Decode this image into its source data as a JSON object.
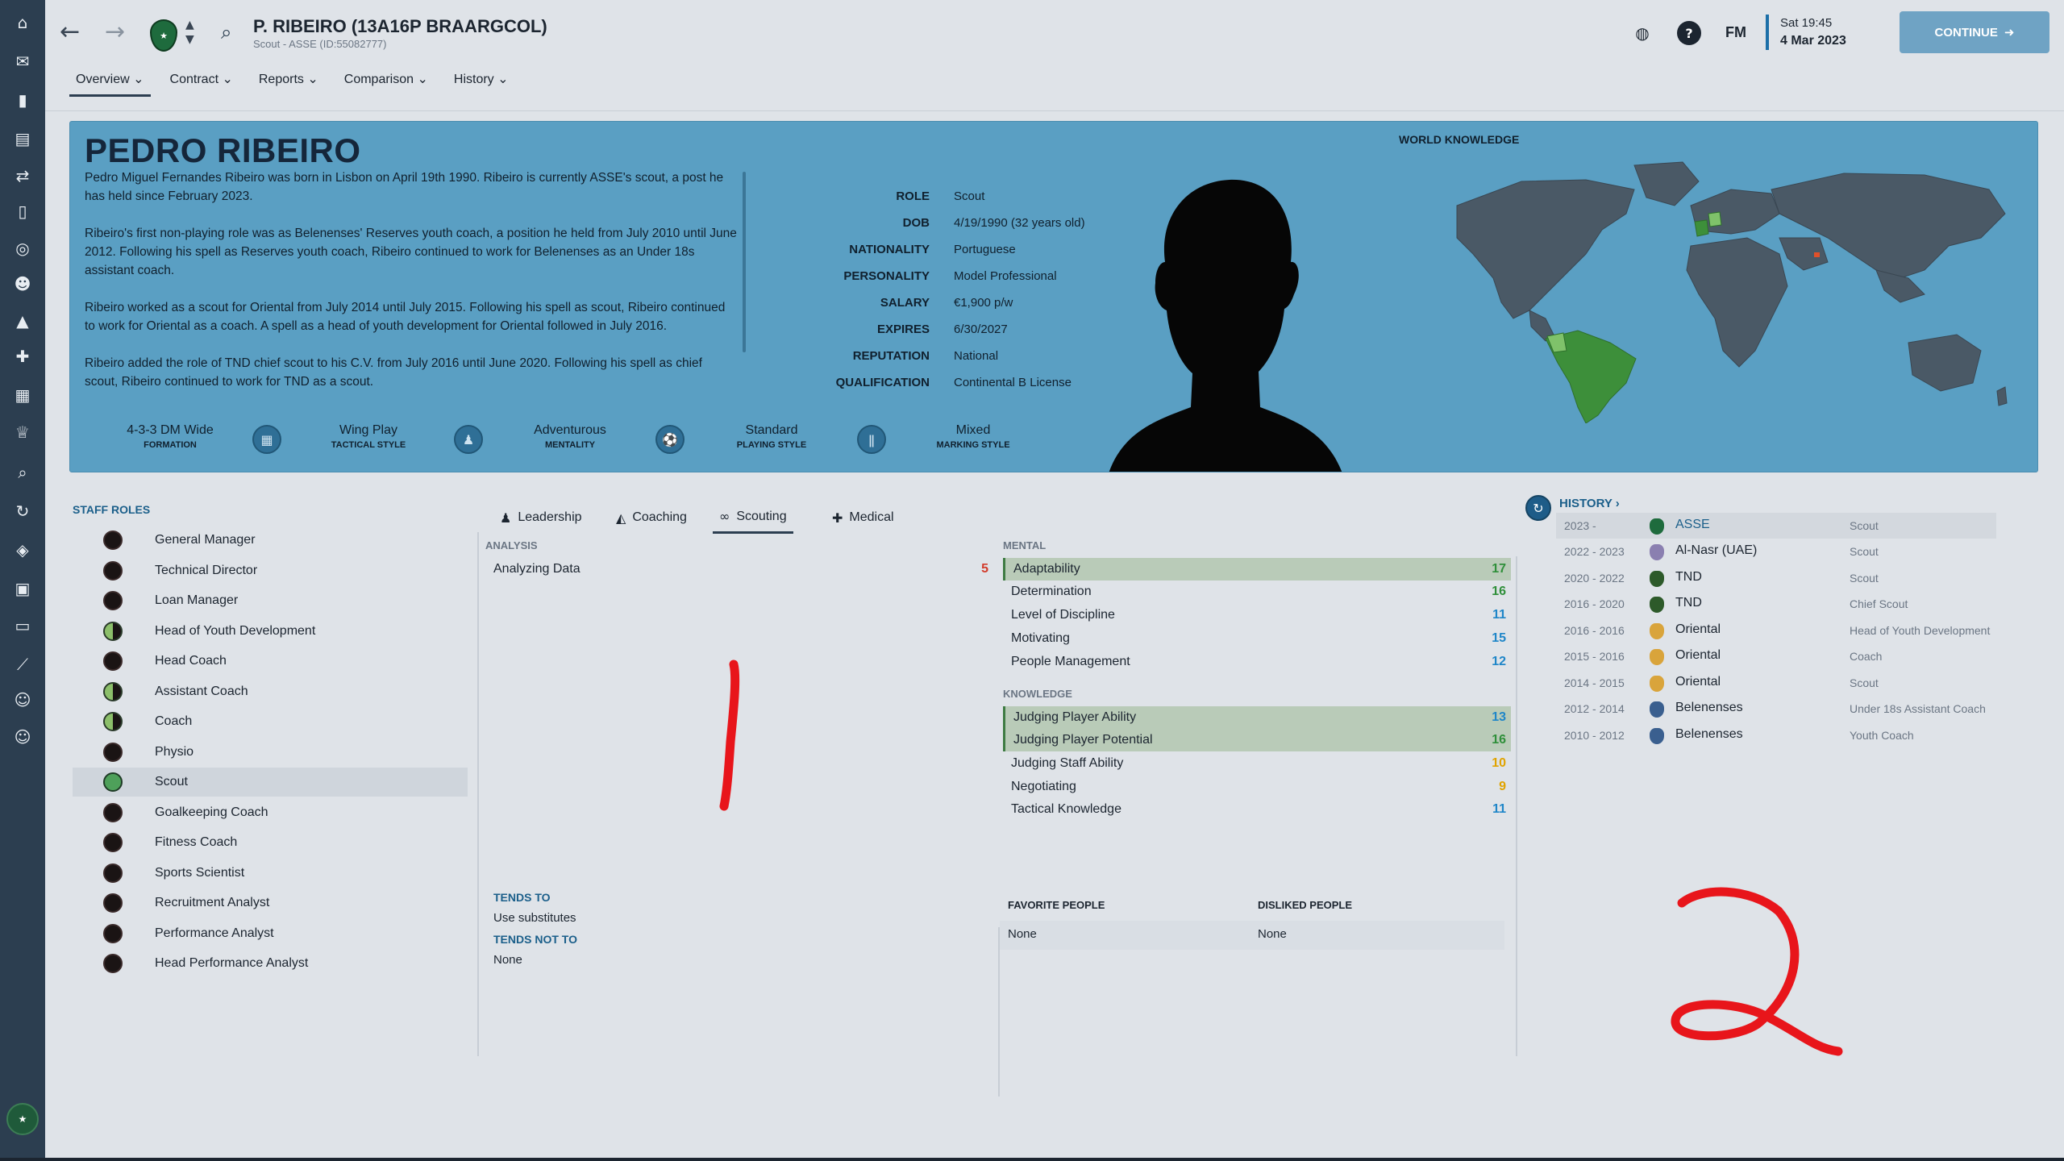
{
  "sidebar": {
    "icons": [
      "home-icon",
      "inbox-icon",
      "squad-icon",
      "team-report-icon",
      "transfers-icon",
      "dynamics-icon",
      "tactics-icon",
      "staff-icon",
      "training-icon",
      "medical-icon",
      "schedule-icon",
      "competitions-icon",
      "scouting-icon",
      "recruitment-icon",
      "club-vision-icon",
      "finances-icon",
      "data-hub-icon",
      "development-icon",
      "reserves-icon",
      "youth-icon"
    ]
  },
  "header": {
    "title": "P. RIBEIRO (13A16P BRAARGCOL)",
    "subtitle": "Scout - ASSE (ID:55082777)",
    "tabs": [
      {
        "label": "Overview"
      },
      {
        "label": "Contract"
      },
      {
        "label": "Reports"
      },
      {
        "label": "Comparison"
      },
      {
        "label": "History"
      }
    ],
    "fm_logo": "FM",
    "date_time": "Sat 19:45",
    "date": "4 Mar 2023",
    "continue_label": "CONTINUE"
  },
  "profile": {
    "name": "PEDRO RIBEIRO",
    "bio": [
      "Pedro Miguel Fernandes Ribeiro was born in Lisbon on April 19th 1990. Ribeiro is currently ASSE's scout, a post he has held since February 2023.",
      "Ribeiro's first non-playing role was as Belenenses' Reserves youth coach, a position he held from July 2010 until June 2012. Following his spell as Reserves youth coach, Ribeiro continued to work for Belenenses as an Under 18s assistant coach.",
      "Ribeiro worked as a scout for Oriental from July 2014 until July 2015. Following his spell as scout, Ribeiro continued to work for Oriental as a coach. A spell as a head of youth development for Oriental followed in July 2016.",
      "Ribeiro added the role of TND chief scout to his C.V. from July 2016 until June 2020. Following his spell as chief scout, Ribeiro continued to work for TND as a scout."
    ],
    "facts": [
      {
        "label": "ROLE",
        "value": "Scout"
      },
      {
        "label": "DOB",
        "value": "4/19/1990 (32 years old)"
      },
      {
        "label": "NATIONALITY",
        "value": "Portuguese"
      },
      {
        "label": "PERSONALITY",
        "value": "Model Professional"
      },
      {
        "label": "SALARY",
        "value": "€1,900 p/w"
      },
      {
        "label": "EXPIRES",
        "value": "6/30/2027"
      },
      {
        "label": "REPUTATION",
        "value": "National"
      },
      {
        "label": "QUALIFICATION",
        "value": "Continental B License"
      }
    ],
    "world_knowledge_title": "WORLD KNOWLEDGE",
    "tactics": [
      {
        "value": "4-3-3 DM Wide",
        "label": "FORMATION"
      },
      {
        "value": "Wing Play",
        "label": "TACTICAL STYLE"
      },
      {
        "value": "Adventurous",
        "label": "MENTALITY"
      },
      {
        "value": "Standard",
        "label": "PLAYING STYLE"
      },
      {
        "value": "Mixed",
        "label": "MARKING STYLE"
      }
    ],
    "colors": {
      "panel": "#5a9fc3",
      "known_country": "#3d8f3a",
      "unknown_country": "#4a5966"
    }
  },
  "staff_roles": {
    "title": "STAFF ROLES",
    "items": [
      {
        "name": "General Manager",
        "suit": "none"
      },
      {
        "name": "Technical Director",
        "suit": "none"
      },
      {
        "name": "Loan Manager",
        "suit": "none"
      },
      {
        "name": "Head of Youth Development",
        "suit": "half"
      },
      {
        "name": "Head Coach",
        "suit": "none"
      },
      {
        "name": "Assistant Coach",
        "suit": "half"
      },
      {
        "name": "Coach",
        "suit": "half"
      },
      {
        "name": "Physio",
        "suit": "none"
      },
      {
        "name": "Scout",
        "suit": "full"
      },
      {
        "name": "Goalkeeping Coach",
        "suit": "none"
      },
      {
        "name": "Fitness Coach",
        "suit": "none"
      },
      {
        "name": "Sports Scientist",
        "suit": "none"
      },
      {
        "name": "Recruitment Analyst",
        "suit": "none"
      },
      {
        "name": "Performance Analyst",
        "suit": "none"
      },
      {
        "name": "Head Performance Analyst",
        "suit": "none"
      }
    ]
  },
  "attributes": {
    "tabs": [
      {
        "label": "Leadership",
        "icon": "leadership-icon"
      },
      {
        "label": "Coaching",
        "icon": "coaching-icon"
      },
      {
        "label": "Scouting",
        "icon": "binoculars-icon"
      },
      {
        "label": "Medical",
        "icon": "medical-kit-icon"
      }
    ],
    "analysis_label": "ANALYSIS",
    "analysis": [
      {
        "name": "Analyzing Data",
        "value": "5"
      }
    ],
    "mental_label": "MENTAL",
    "mental": [
      {
        "name": "Adaptability",
        "value": "17"
      },
      {
        "name": "Determination",
        "value": "16"
      },
      {
        "name": "Level of Discipline",
        "value": "11"
      },
      {
        "name": "Motivating",
        "value": "15"
      },
      {
        "name": "People Management",
        "value": "12"
      }
    ],
    "knowledge_label": "KNOWLEDGE",
    "knowledge": [
      {
        "name": "Judging Player Ability",
        "value": "13"
      },
      {
        "name": "Judging Player Potential",
        "value": "16"
      },
      {
        "name": "Judging Staff Ability",
        "value": "10"
      },
      {
        "name": "Negotiating",
        "value": "9"
      },
      {
        "name": "Tactical Knowledge",
        "value": "11"
      }
    ],
    "tends_to_label": "TENDS TO",
    "tends_to": "Use substitutes",
    "tends_not_to_label": "TENDS NOT TO",
    "tends_not_to": "None",
    "favorite_people_label": "FAVORITE PEOPLE",
    "favorite_people": "None",
    "disliked_people_label": "DISLIKED PEOPLE",
    "disliked_people": "None"
  },
  "history": {
    "title": "HISTORY",
    "rows": [
      {
        "years": "2023 -",
        "club": "ASSE",
        "role": "Scout"
      },
      {
        "years": "2022 - 2023",
        "club": "Al-Nasr (UAE)",
        "role": "Scout"
      },
      {
        "years": "2020 - 2022",
        "club": "TND",
        "role": "Scout"
      },
      {
        "years": "2016 - 2020",
        "club": "TND",
        "role": "Chief Scout"
      },
      {
        "years": "2016 - 2016",
        "club": "Oriental",
        "role": "Head of Youth Development"
      },
      {
        "years": "2015 - 2016",
        "club": "Oriental",
        "role": "Coach"
      },
      {
        "years": "2014 - 2015",
        "club": "Oriental",
        "role": "Scout"
      },
      {
        "years": "2012 - 2014",
        "club": "Belenenses",
        "role": "Under 18s Assistant Coach"
      },
      {
        "years": "2010 - 2012",
        "club": "Belenenses",
        "role": "Youth Coach"
      }
    ]
  },
  "annotations": {
    "mark_1": "1",
    "mark_2": "2",
    "color": "#e8151b"
  }
}
